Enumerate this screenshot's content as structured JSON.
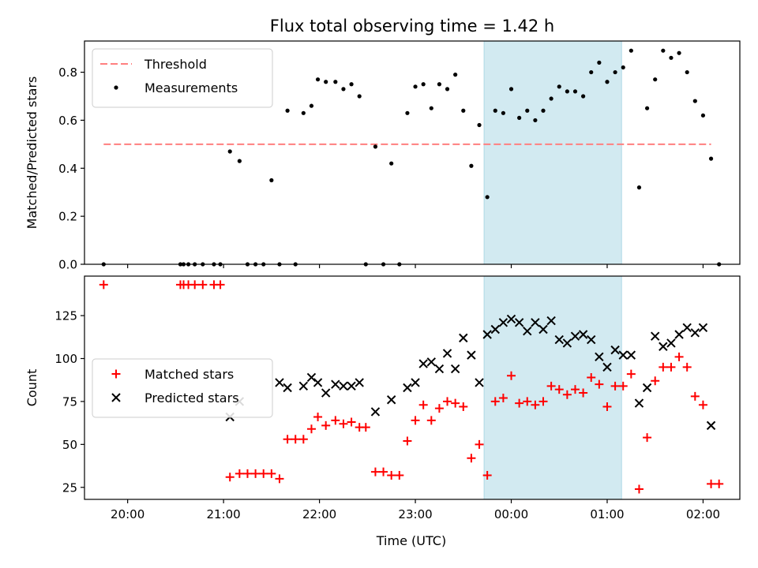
{
  "figure_title": "Flux total observing time = 1.42 h",
  "x_axis_label": "Time (UTC)",
  "x_tick_labels": [
    "20:00",
    "21:00",
    "22:00",
    "23:00",
    "00:00",
    "01:00",
    "02:00"
  ],
  "colors": {
    "threshold": "#ff7f7f",
    "measurements": "#000000",
    "matched": "#ff0000",
    "predicted": "#000000",
    "observing_window": "#add8e6"
  },
  "chart_data": [
    {
      "type": "scatter",
      "title": "Flux total observing time = 1.42 h",
      "xlabel": "",
      "ylabel": "Matched/Predicted stars",
      "x_unit": "hours UTC",
      "xlim": [
        "19:33",
        "02:23"
      ],
      "ylim": [
        0,
        0.93
      ],
      "yticks": [
        "0.0",
        "0.2",
        "0.4",
        "0.6",
        "0.8"
      ],
      "grid": false,
      "legend_position": "top-left",
      "shaded_interval": [
        "23:43",
        "01:09"
      ],
      "threshold": {
        "name": "Threshold",
        "value": 0.5,
        "x_range": [
          "19:45",
          "02:05"
        ],
        "style": "dashed"
      },
      "series": [
        {
          "name": "Measurements",
          "marker": "dot",
          "points": [
            [
              "19:45",
              0.0
            ],
            [
              "20:33",
              0.0
            ],
            [
              "20:35",
              0.0
            ],
            [
              "20:38",
              0.0
            ],
            [
              "20:42",
              0.0
            ],
            [
              "20:47",
              0.0
            ],
            [
              "20:54",
              0.0
            ],
            [
              "20:58",
              0.0
            ],
            [
              "21:04",
              0.47
            ],
            [
              "21:10",
              0.43
            ],
            [
              "21:15",
              0.0
            ],
            [
              "21:20",
              0.0
            ],
            [
              "21:25",
              0.0
            ],
            [
              "21:30",
              0.35
            ],
            [
              "21:35",
              0.0
            ],
            [
              "21:40",
              0.64
            ],
            [
              "21:45",
              0.0
            ],
            [
              "21:50",
              0.63
            ],
            [
              "21:55",
              0.66
            ],
            [
              "21:59",
              0.77
            ],
            [
              "22:04",
              0.76
            ],
            [
              "22:10",
              0.76
            ],
            [
              "22:15",
              0.73
            ],
            [
              "22:20",
              0.75
            ],
            [
              "22:25",
              0.7
            ],
            [
              "22:29",
              0.0
            ],
            [
              "22:35",
              0.49
            ],
            [
              "22:40",
              0.0
            ],
            [
              "22:45",
              0.42
            ],
            [
              "22:50",
              0.0
            ],
            [
              "22:55",
              0.63
            ],
            [
              "23:00",
              0.74
            ],
            [
              "23:05",
              0.75
            ],
            [
              "23:10",
              0.65
            ],
            [
              "23:15",
              0.75
            ],
            [
              "23:20",
              0.73
            ],
            [
              "23:25",
              0.79
            ],
            [
              "23:30",
              0.64
            ],
            [
              "23:35",
              0.41
            ],
            [
              "23:40",
              0.58
            ],
            [
              "23:45",
              0.28
            ],
            [
              "23:50",
              0.64
            ],
            [
              "23:55",
              0.63
            ],
            [
              "00:00",
              0.73
            ],
            [
              "00:05",
              0.61
            ],
            [
              "00:10",
              0.64
            ],
            [
              "00:15",
              0.6
            ],
            [
              "00:20",
              0.64
            ],
            [
              "00:25",
              0.69
            ],
            [
              "00:30",
              0.74
            ],
            [
              "00:35",
              0.72
            ],
            [
              "00:40",
              0.72
            ],
            [
              "00:45",
              0.7
            ],
            [
              "00:50",
              0.8
            ],
            [
              "00:55",
              0.84
            ],
            [
              "01:00",
              0.76
            ],
            [
              "01:05",
              0.8
            ],
            [
              "01:10",
              0.82
            ],
            [
              "01:15",
              0.89
            ],
            [
              "01:20",
              0.32
            ],
            [
              "01:25",
              0.65
            ],
            [
              "01:30",
              0.77
            ],
            [
              "01:35",
              0.89
            ],
            [
              "01:40",
              0.86
            ],
            [
              "01:45",
              0.88
            ],
            [
              "01:50",
              0.8
            ],
            [
              "01:55",
              0.68
            ],
            [
              "02:00",
              0.62
            ],
            [
              "02:05",
              0.44
            ],
            [
              "02:10",
              0.0
            ]
          ]
        }
      ]
    },
    {
      "type": "scatter",
      "title": "",
      "xlabel": "Time (UTC)",
      "ylabel": "Count",
      "x_unit": "hours UTC",
      "xlim": [
        "19:33",
        "02:23"
      ],
      "ylim": [
        18,
        148
      ],
      "yticks": [
        "25",
        "50",
        "75",
        "100",
        "125"
      ],
      "grid": false,
      "legend_position": "center-left",
      "shaded_interval": [
        "23:43",
        "01:09"
      ],
      "series": [
        {
          "name": "Matched stars",
          "marker": "plus",
          "points": [
            [
              "19:45",
              143
            ],
            [
              "20:33",
              143
            ],
            [
              "20:35",
              143
            ],
            [
              "20:38",
              143
            ],
            [
              "20:42",
              143
            ],
            [
              "20:47",
              143
            ],
            [
              "20:54",
              143
            ],
            [
              "20:58",
              143
            ],
            [
              "21:04",
              31
            ],
            [
              "21:10",
              33
            ],
            [
              "21:15",
              33
            ],
            [
              "21:20",
              33
            ],
            [
              "21:25",
              33
            ],
            [
              "21:30",
              33
            ],
            [
              "21:35",
              30
            ],
            [
              "21:40",
              53
            ],
            [
              "21:45",
              53
            ],
            [
              "21:50",
              53
            ],
            [
              "21:55",
              59
            ],
            [
              "21:59",
              66
            ],
            [
              "22:04",
              61
            ],
            [
              "22:10",
              64
            ],
            [
              "22:15",
              62
            ],
            [
              "22:20",
              63
            ],
            [
              "22:25",
              60
            ],
            [
              "22:29",
              60
            ],
            [
              "22:35",
              34
            ],
            [
              "22:40",
              34
            ],
            [
              "22:45",
              32
            ],
            [
              "22:50",
              32
            ],
            [
              "22:55",
              52
            ],
            [
              "23:00",
              64
            ],
            [
              "23:05",
              73
            ],
            [
              "23:10",
              64
            ],
            [
              "23:15",
              71
            ],
            [
              "23:20",
              75
            ],
            [
              "23:25",
              74
            ],
            [
              "23:30",
              72
            ],
            [
              "23:35",
              42
            ],
            [
              "23:40",
              50
            ],
            [
              "23:45",
              32
            ],
            [
              "23:50",
              75
            ],
            [
              "23:55",
              77
            ],
            [
              "00:00",
              90
            ],
            [
              "00:05",
              74
            ],
            [
              "00:10",
              75
            ],
            [
              "00:15",
              73
            ],
            [
              "00:20",
              75
            ],
            [
              "00:25",
              84
            ],
            [
              "00:30",
              82
            ],
            [
              "00:35",
              79
            ],
            [
              "00:40",
              82
            ],
            [
              "00:45",
              80
            ],
            [
              "00:50",
              89
            ],
            [
              "00:55",
              85
            ],
            [
              "01:00",
              72
            ],
            [
              "01:05",
              84
            ],
            [
              "01:10",
              84
            ],
            [
              "01:15",
              91
            ],
            [
              "01:20",
              24
            ],
            [
              "01:25",
              54
            ],
            [
              "01:30",
              87
            ],
            [
              "01:35",
              95
            ],
            [
              "01:40",
              95
            ],
            [
              "01:45",
              101
            ],
            [
              "01:50",
              95
            ],
            [
              "01:55",
              78
            ],
            [
              "02:00",
              73
            ],
            [
              "02:05",
              27
            ],
            [
              "02:10",
              27
            ]
          ]
        },
        {
          "name": "Predicted stars",
          "marker": "x",
          "points": [
            [
              "21:04",
              66
            ],
            [
              "21:10",
              75
            ],
            [
              "21:35",
              86
            ],
            [
              "21:40",
              83
            ],
            [
              "21:50",
              84
            ],
            [
              "21:55",
              89
            ],
            [
              "21:59",
              86
            ],
            [
              "22:04",
              80
            ],
            [
              "22:10",
              85
            ],
            [
              "22:15",
              84
            ],
            [
              "22:20",
              84
            ],
            [
              "22:25",
              86
            ],
            [
              "22:35",
              69
            ],
            [
              "22:45",
              76
            ],
            [
              "22:55",
              83
            ],
            [
              "23:00",
              86
            ],
            [
              "23:05",
              97
            ],
            [
              "23:10",
              98
            ],
            [
              "23:15",
              94
            ],
            [
              "23:20",
              103
            ],
            [
              "23:25",
              94
            ],
            [
              "23:30",
              112
            ],
            [
              "23:35",
              102
            ],
            [
              "23:40",
              86
            ],
            [
              "23:45",
              114
            ],
            [
              "23:50",
              117
            ],
            [
              "23:55",
              121
            ],
            [
              "00:00",
              123
            ],
            [
              "00:05",
              121
            ],
            [
              "00:10",
              116
            ],
            [
              "00:15",
              121
            ],
            [
              "00:20",
              117
            ],
            [
              "00:25",
              122
            ],
            [
              "00:30",
              111
            ],
            [
              "00:35",
              109
            ],
            [
              "00:40",
              113
            ],
            [
              "00:45",
              114
            ],
            [
              "00:50",
              111
            ],
            [
              "00:55",
              101
            ],
            [
              "01:00",
              95
            ],
            [
              "01:05",
              105
            ],
            [
              "01:10",
              102
            ],
            [
              "01:15",
              102
            ],
            [
              "01:20",
              74
            ],
            [
              "01:25",
              83
            ],
            [
              "01:30",
              113
            ],
            [
              "01:35",
              107
            ],
            [
              "01:40",
              109
            ],
            [
              "01:45",
              114
            ],
            [
              "01:50",
              118
            ],
            [
              "01:55",
              115
            ],
            [
              "02:00",
              118
            ],
            [
              "02:05",
              61
            ]
          ]
        }
      ]
    }
  ]
}
